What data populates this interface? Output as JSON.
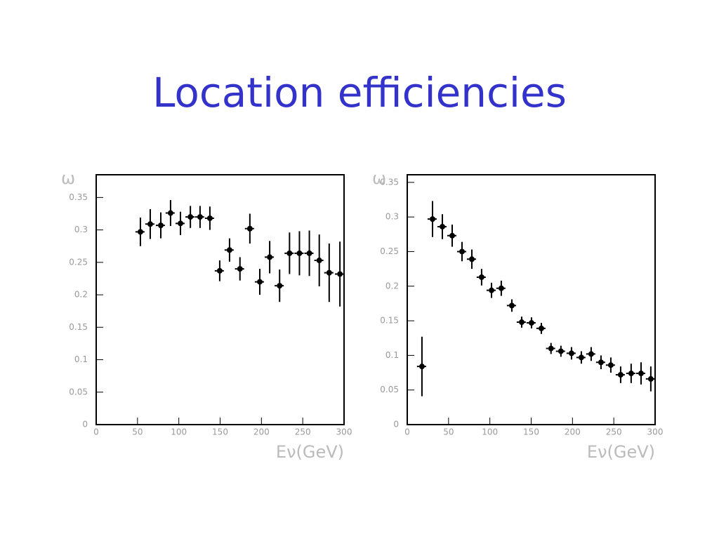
{
  "title": "Location efficiencies",
  "chart_data": [
    {
      "type": "scatter",
      "y_label": "ω",
      "x_label": "Eν(GeV)",
      "xlim": [
        0,
        300
      ],
      "ylim": [
        0,
        0.385
      ],
      "xticks": [
        0,
        50,
        100,
        150,
        200,
        250,
        300
      ],
      "yticks": [
        0,
        0.05,
        0.1,
        0.15,
        0.2,
        0.25,
        0.3,
        0.35
      ],
      "color": "#000000",
      "xerr": 6,
      "x": [
        53.5,
        65.4,
        78.2,
        90,
        102,
        114,
        125.7,
        137.6,
        149.5,
        161.4,
        174,
        186,
        198,
        210,
        222,
        234,
        246,
        258,
        270,
        282,
        295
      ],
      "values": [
        0.297,
        0.309,
        0.307,
        0.326,
        0.31,
        0.32,
        0.32,
        0.318,
        0.237,
        0.269,
        0.24,
        0.302,
        0.22,
        0.258,
        0.214,
        0.264,
        0.264,
        0.264,
        0.253,
        0.234,
        0.232
      ],
      "yerr": [
        0.022,
        0.023,
        0.02,
        0.02,
        0.018,
        0.017,
        0.017,
        0.018,
        0.016,
        0.018,
        0.018,
        0.023,
        0.02,
        0.025,
        0.025,
        0.032,
        0.034,
        0.035,
        0.04,
        0.045,
        0.05
      ]
    },
    {
      "type": "scatter",
      "y_label": "ω",
      "x_label": "Eν(GeV)",
      "xlim": [
        0,
        300
      ],
      "ylim": [
        0,
        0.361
      ],
      "xticks": [
        0,
        50,
        100,
        150,
        200,
        250,
        300
      ],
      "yticks": [
        0,
        0.05,
        0.1,
        0.15,
        0.2,
        0.25,
        0.3,
        0.35
      ],
      "color": "#000000",
      "xerr": 6,
      "x": [
        17.8,
        30.6,
        42.5,
        54.4,
        66.3,
        78.2,
        90,
        102,
        113.8,
        126.6,
        138.5,
        150.4,
        162.3,
        174,
        186,
        198.8,
        210.7,
        222.6,
        234.5,
        246.4,
        258.3,
        271,
        283,
        294.8
      ],
      "values": [
        0.084,
        0.297,
        0.286,
        0.273,
        0.25,
        0.239,
        0.213,
        0.194,
        0.197,
        0.172,
        0.148,
        0.147,
        0.139,
        0.11,
        0.106,
        0.103,
        0.097,
        0.102,
        0.09,
        0.086,
        0.072,
        0.074,
        0.074,
        0.066
      ],
      "yerr": [
        0.043,
        0.026,
        0.018,
        0.016,
        0.014,
        0.014,
        0.012,
        0.011,
        0.011,
        0.009,
        0.008,
        0.008,
        0.008,
        0.008,
        0.008,
        0.009,
        0.009,
        0.01,
        0.01,
        0.011,
        0.012,
        0.014,
        0.016,
        0.018
      ]
    }
  ]
}
